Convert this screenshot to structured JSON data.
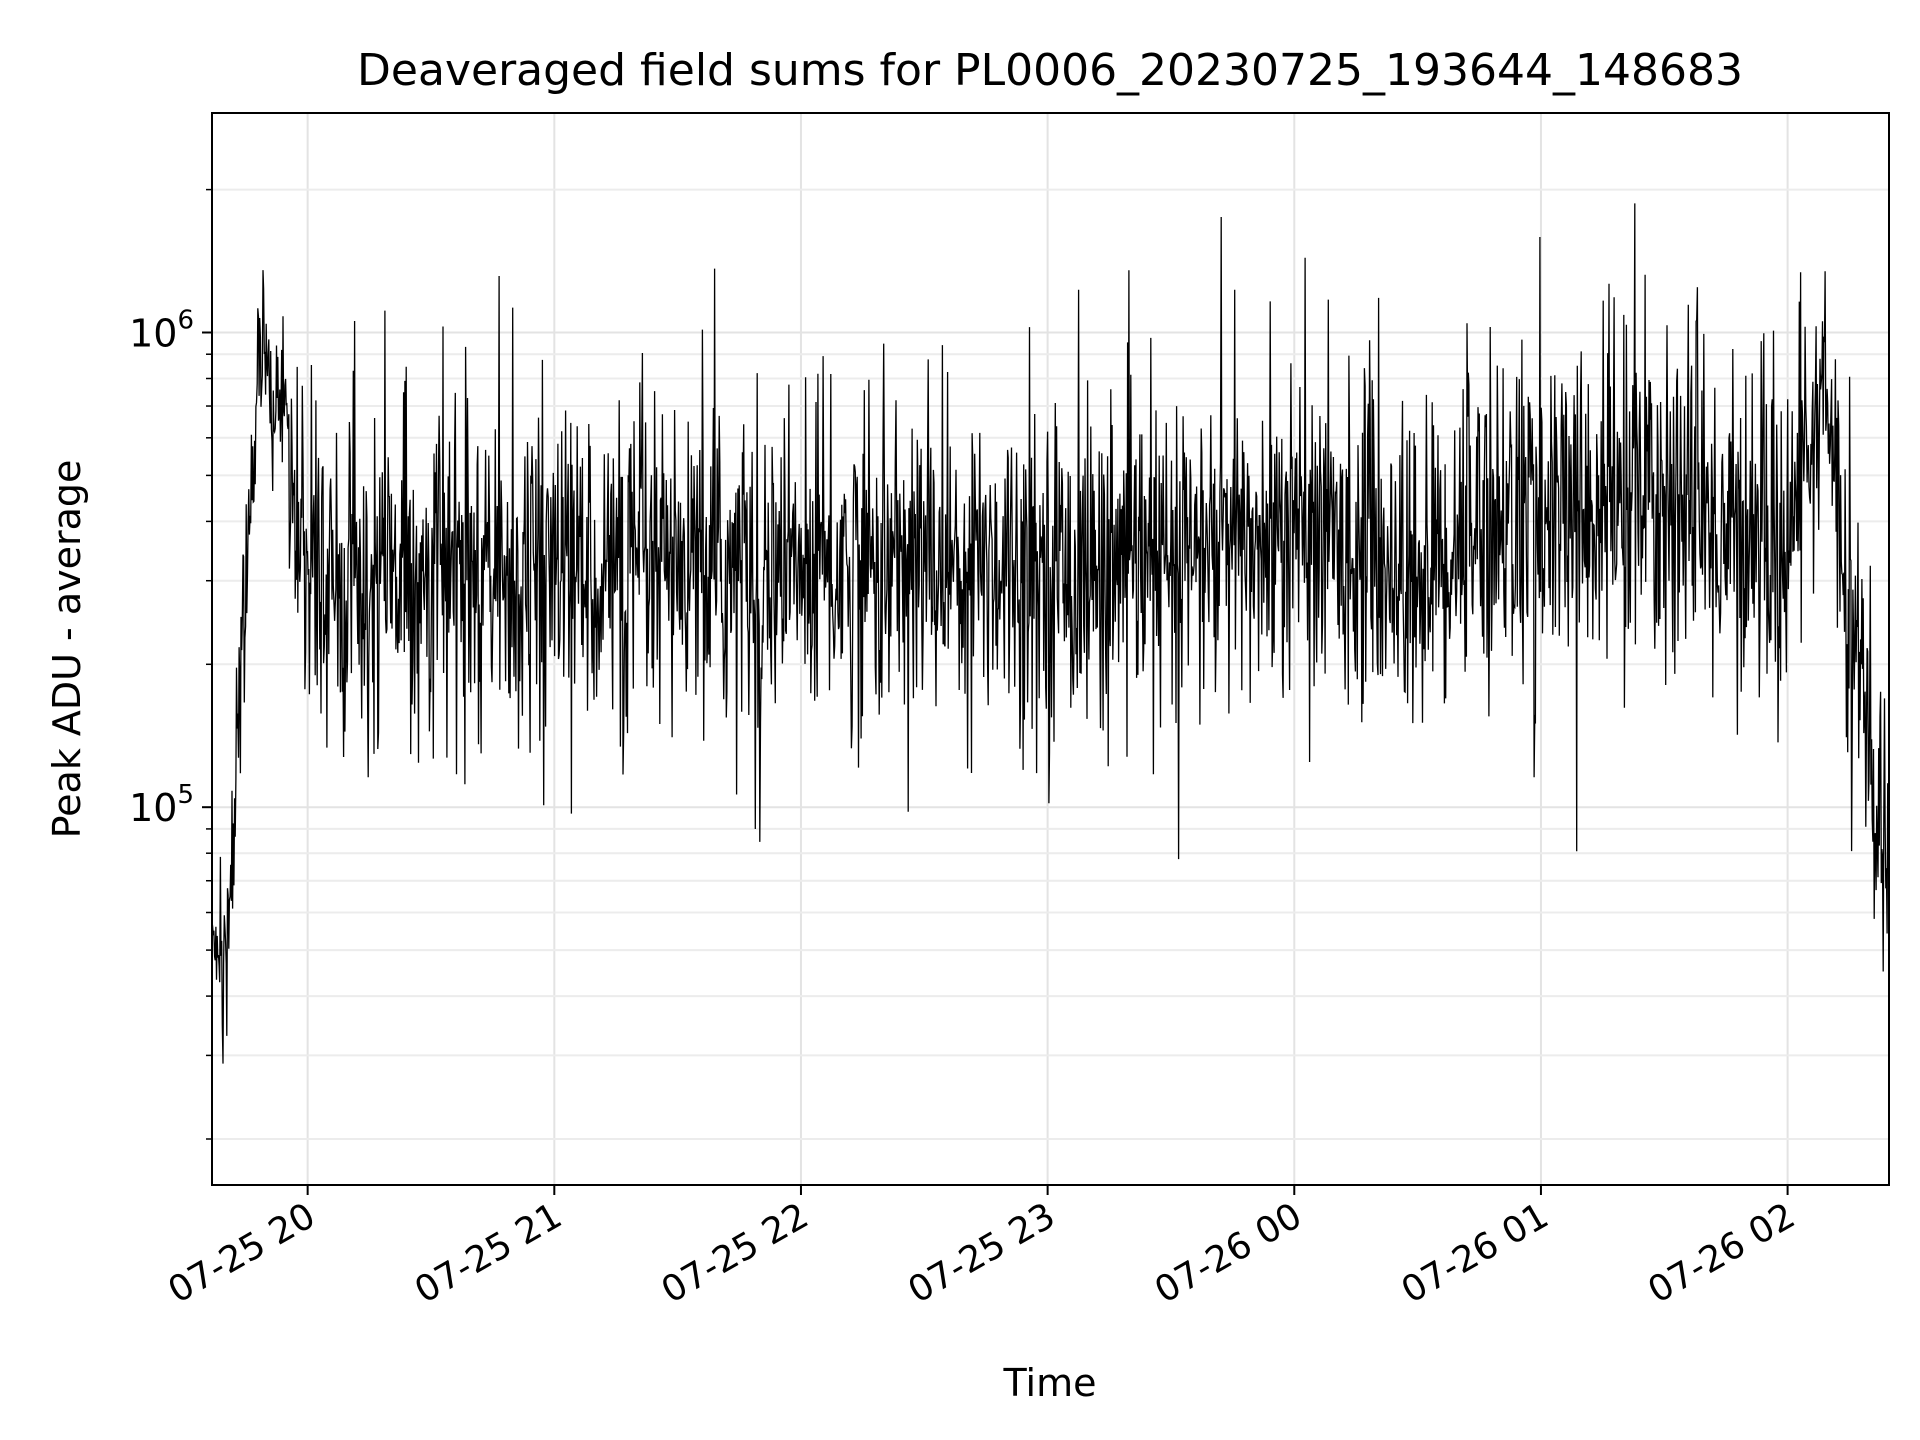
{
  "chart_data": {
    "type": "line",
    "title": "Deaveraged field sums for PL0006_20230725_193644_148683",
    "xlabel": "Time",
    "ylabel": "Peak ADU - average",
    "y_scale": "log",
    "ylim": [
      16000,
      2900000
    ],
    "xlim": [
      "2023-07-25 19:36:44",
      "2023-07-26 02:24:40"
    ],
    "x_ticks": [
      {
        "t": "2023-07-25 20:00",
        "label": "07-25 20"
      },
      {
        "t": "2023-07-25 21:00",
        "label": "07-25 21"
      },
      {
        "t": "2023-07-25 22:00",
        "label": "07-25 22"
      },
      {
        "t": "2023-07-25 23:00",
        "label": "07-25 23"
      },
      {
        "t": "2023-07-26 00:00",
        "label": "07-26 00"
      },
      {
        "t": "2023-07-26 01:00",
        "label": "07-26 01"
      },
      {
        "t": "2023-07-26 02:00",
        "label": "07-26 02"
      }
    ],
    "y_ticks": [
      {
        "v": 100000,
        "base": "10",
        "exp": "5"
      },
      {
        "v": 1000000,
        "base": "10",
        "exp": "6"
      }
    ],
    "grid": true,
    "line_color": "#000000",
    "series": [
      {
        "x": [
          "2023-07-25 19:36:44",
          "2023-07-25 19:39",
          "2023-07-25 19:41",
          "2023-07-25 19:42",
          "2023-07-25 19:44",
          "2023-07-25 19:46",
          "2023-07-25 19:48",
          "2023-07-25 19:49",
          "2023-07-25 19:50",
          "2023-07-25 19:52",
          "2023-07-25 19:54",
          "2023-07-25 19:56",
          "2023-07-25 19:57",
          "2023-07-25 19:58",
          "2023-07-25 20:05",
          "2023-07-25 20:15",
          "2023-07-25 20:30",
          "2023-07-25 20:45",
          "2023-07-25 21:00",
          "2023-07-25 21:15",
          "2023-07-25 21:30",
          "2023-07-25 21:45",
          "2023-07-25 22:00",
          "2023-07-25 22:15",
          "2023-07-25 22:30",
          "2023-07-25 22:45",
          "2023-07-25 23:00",
          "2023-07-25 23:15",
          "2023-07-25 23:30",
          "2023-07-25 23:45",
          "2023-07-26 00:00",
          "2023-07-26 00:15",
          "2023-07-26 00:30",
          "2023-07-26 00:45",
          "2023-07-26 01:00",
          "2023-07-26 01:15",
          "2023-07-26 01:30",
          "2023-07-26 01:45",
          "2023-07-26 02:00",
          "2023-07-26 02:05",
          "2023-07-26 02:10",
          "2023-07-26 02:15",
          "2023-07-26 02:20",
          "2023-07-26 02:24:40"
        ],
        "y": [
          52000,
          45000,
          55000,
          100000,
          200000,
          450000,
          800000,
          950000,
          900000,
          750000,
          650000,
          600000,
          420000,
          350000,
          300000,
          310000,
          320000,
          300000,
          330000,
          310000,
          300000,
          320000,
          310000,
          320000,
          330000,
          340000,
          320000,
          310000,
          330000,
          350000,
          370000,
          360000,
          300000,
          420000,
          400000,
          430000,
          450000,
          380000,
          360000,
          600000,
          680000,
          300000,
          120000,
          60000
        ],
        "spread": [
          0.14,
          0.16,
          0.15,
          0.18,
          0.2,
          0.18,
          0.16,
          0.16,
          0.16,
          0.17,
          0.18,
          0.2,
          0.24,
          0.26,
          0.28,
          0.3,
          0.3,
          0.3,
          0.3,
          0.3,
          0.3,
          0.3,
          0.3,
          0.3,
          0.3,
          0.3,
          0.3,
          0.3,
          0.3,
          0.3,
          0.3,
          0.3,
          0.3,
          0.3,
          0.33,
          0.33,
          0.33,
          0.3,
          0.3,
          0.2,
          0.2,
          0.35,
          0.35,
          0.35
        ]
      }
    ]
  }
}
